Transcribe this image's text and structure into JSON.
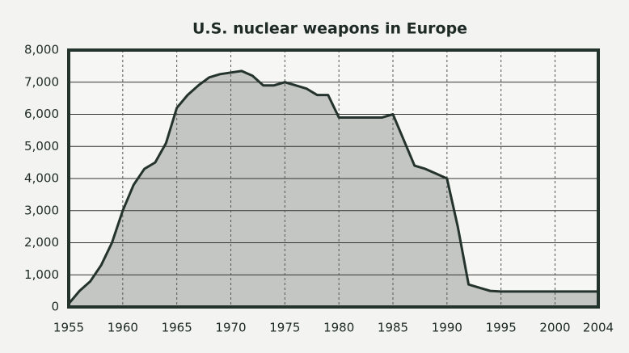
{
  "chart_data": {
    "type": "area",
    "title": "U.S. nuclear weapons in Europe",
    "x": [
      1955,
      1956,
      1957,
      1958,
      1959,
      1960,
      1961,
      1962,
      1963,
      1964,
      1965,
      1966,
      1967,
      1968,
      1969,
      1970,
      1971,
      1972,
      1973,
      1974,
      1975,
      1976,
      1977,
      1978,
      1979,
      1980,
      1981,
      1982,
      1983,
      1984,
      1985,
      1986,
      1987,
      1988,
      1989,
      1990,
      1991,
      1992,
      1993,
      1994,
      1995,
      2000,
      2004
    ],
    "values": [
      100,
      500,
      800,
      1300,
      2000,
      3000,
      3800,
      4300,
      4500,
      5100,
      6200,
      6600,
      6900,
      7150,
      7250,
      7300,
      7350,
      7200,
      6900,
      6900,
      7000,
      6900,
      6800,
      6600,
      6600,
      5900,
      5900,
      5900,
      5900,
      5900,
      6000,
      5200,
      4400,
      4300,
      4150,
      4000,
      2500,
      700,
      600,
      500,
      480,
      480,
      480
    ],
    "color": "#c4c6c4",
    "line_color": "#24332e",
    "xlim": [
      1955,
      2004
    ],
    "xticks": [
      1955,
      1960,
      1965,
      1970,
      1975,
      1980,
      1985,
      1990,
      1995,
      2000,
      2004
    ],
    "ylim": [
      0,
      8000
    ],
    "yticks": [
      0,
      {
        "value": 1000,
        "label": "1,000"
      },
      {
        "value": 2000,
        "label": "2,000"
      },
      {
        "value": 3000,
        "label": "3,000"
      },
      {
        "value": 4000,
        "label": "4,000"
      },
      {
        "value": 5000,
        "label": "5,000"
      },
      {
        "value": 6000,
        "label": "6,000"
      },
      {
        "value": 7000,
        "label": "7,000"
      },
      {
        "value": 8000,
        "label": "8,000"
      }
    ],
    "grid": true
  }
}
